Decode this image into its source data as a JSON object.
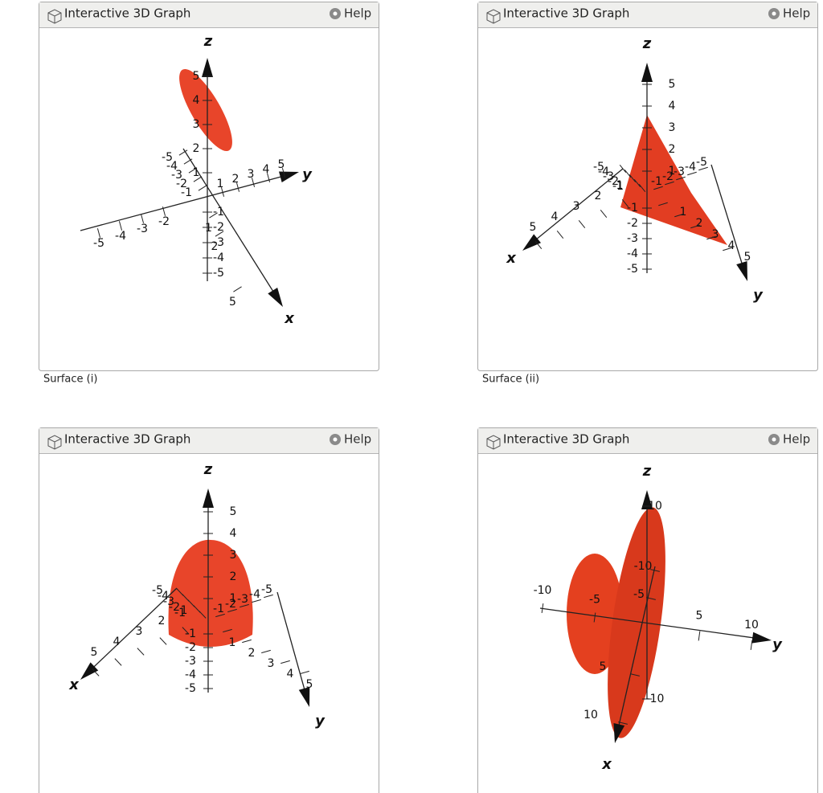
{
  "panels": [
    {
      "title": "Interactive 3D Graph",
      "help": "Help",
      "caption": "Surface (i)",
      "axes": {
        "x": {
          "label": "x",
          "ticks": [
            -5,
            -4,
            -3,
            -2,
            -1,
            1,
            2,
            5
          ]
        },
        "y": {
          "label": "y",
          "ticks": [
            -5,
            -4,
            -3,
            -2,
            1,
            2,
            3,
            4,
            5
          ]
        },
        "z": {
          "label": "z",
          "ticks": [
            1,
            2,
            3,
            4,
            5,
            -1,
            -2,
            -3,
            -4,
            -5
          ]
        }
      }
    },
    {
      "title": "Interactive 3D Graph",
      "help": "Help",
      "caption": "Surface (ii)",
      "axes": {
        "x": {
          "label": "x",
          "ticks": [
            -5,
            -4,
            -3,
            -2,
            -1,
            1,
            2,
            3,
            4,
            5
          ]
        },
        "y": {
          "label": "y",
          "ticks": [
            -5,
            -4,
            -3,
            -2,
            -1,
            1,
            2,
            3,
            4,
            5
          ]
        },
        "z": {
          "label": "z",
          "ticks": [
            1,
            2,
            3,
            4,
            5,
            -1,
            -2,
            -3,
            -4,
            -5
          ]
        }
      }
    },
    {
      "title": "Interactive 3D Graph",
      "help": "Help",
      "axes": {
        "x": {
          "label": "x",
          "ticks": [
            -5,
            -4,
            -3,
            -2,
            -1,
            1,
            2,
            3,
            4,
            5
          ]
        },
        "y": {
          "label": "y",
          "ticks": [
            -5,
            -4,
            -3,
            -2,
            -1,
            1,
            2,
            3,
            4,
            5
          ]
        },
        "z": {
          "label": "z",
          "ticks": [
            1,
            2,
            3,
            4,
            5,
            -1,
            -2,
            -3,
            -4,
            -5
          ]
        }
      }
    },
    {
      "title": "Interactive 3D Graph",
      "help": "Help",
      "axes": {
        "x": {
          "label": "x",
          "ticks": [
            -10,
            -5,
            5,
            10
          ]
        },
        "y": {
          "label": "y",
          "ticks": [
            -10,
            -5,
            5,
            10
          ]
        },
        "z": {
          "label": "z",
          "ticks": [
            10,
            -10
          ]
        }
      }
    }
  ]
}
